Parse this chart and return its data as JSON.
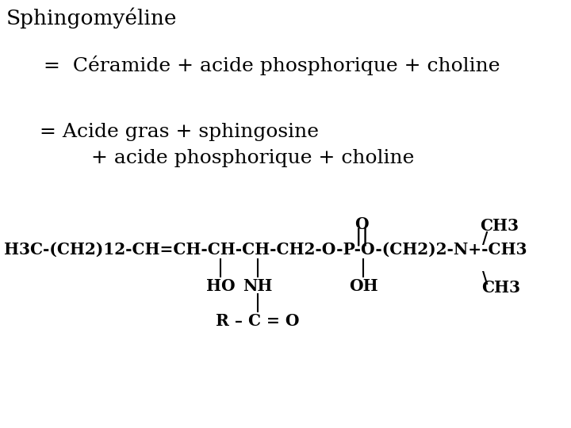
{
  "background_color": "#ffffff",
  "title": "Sphingomyéline",
  "line1": "=  Céramide + acide phosphorique + choline",
  "line2a": "= Acide gras + sphingosine",
  "line2b": "+ acide phosphorique + choline",
  "struct_main": "H3C-(CH2)12-CH=CH-CH-CH-CH2-O-P-O-(CH2)2-N+-CH3",
  "label_O_top": "O",
  "label_double_bond": "||",
  "label_CH3_top": "CH3",
  "label_slash": "/",
  "label_HO": "HO",
  "label_NH": "NH",
  "label_OH": "OH",
  "label_backslash": "\\",
  "label_CH3_bot": "CH3",
  "label_RC": "R – C = O",
  "title_fontsize": 19,
  "text_fontsize": 18,
  "struct_fontsize": 14.5
}
